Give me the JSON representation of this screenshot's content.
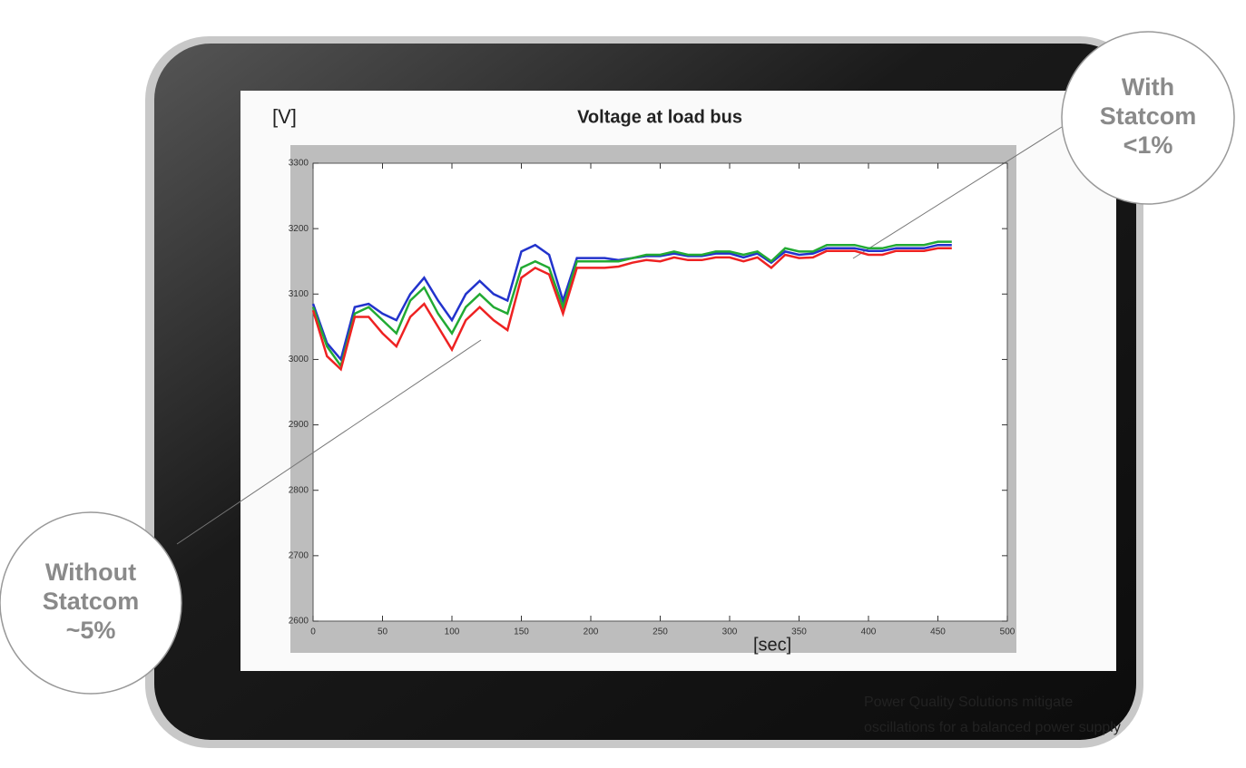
{
  "chart_data": {
    "type": "line",
    "title": "Voltage at load bus",
    "y_label": "[V]",
    "x_label": "[sec]",
    "x": [
      0,
      10,
      20,
      30,
      40,
      50,
      60,
      70,
      80,
      90,
      100,
      110,
      120,
      130,
      140,
      150,
      160,
      170,
      180,
      190,
      200,
      210,
      220,
      230,
      240,
      250,
      260,
      270,
      280,
      290,
      300,
      310,
      320,
      330,
      340,
      350,
      360,
      370,
      380,
      390,
      400,
      410,
      420,
      430,
      440,
      450,
      460
    ],
    "series": [
      {
        "color": "#2233cc",
        "values": [
          3085,
          3025,
          3000,
          3080,
          3085,
          3070,
          3060,
          3100,
          3125,
          3090,
          3060,
          3100,
          3120,
          3100,
          3090,
          3165,
          3175,
          3160,
          3090,
          3155,
          3155,
          3155,
          3152,
          3155,
          3158,
          3158,
          3162,
          3158,
          3158,
          3162,
          3162,
          3156,
          3162,
          3148,
          3165,
          3160,
          3162,
          3170,
          3170,
          3170,
          3166,
          3166,
          3170,
          3170,
          3170,
          3175,
          3175
        ]
      },
      {
        "color": "#22aa33",
        "values": [
          3080,
          3020,
          2990,
          3070,
          3080,
          3060,
          3040,
          3090,
          3110,
          3070,
          3040,
          3080,
          3100,
          3080,
          3070,
          3140,
          3150,
          3140,
          3080,
          3150,
          3150,
          3150,
          3150,
          3155,
          3160,
          3160,
          3165,
          3160,
          3160,
          3165,
          3165,
          3160,
          3165,
          3150,
          3170,
          3165,
          3165,
          3175,
          3175,
          3175,
          3170,
          3170,
          3175,
          3175,
          3175,
          3180,
          3180
        ]
      },
      {
        "color": "#ee2222",
        "values": [
          3075,
          3005,
          2985,
          3065,
          3065,
          3040,
          3020,
          3065,
          3085,
          3050,
          3015,
          3060,
          3080,
          3060,
          3045,
          3125,
          3140,
          3130,
          3070,
          3140,
          3140,
          3140,
          3142,
          3148,
          3152,
          3150,
          3156,
          3152,
          3152,
          3156,
          3156,
          3150,
          3156,
          3140,
          3160,
          3155,
          3156,
          3166,
          3166,
          3166,
          3160,
          3160,
          3166,
          3166,
          3166,
          3170,
          3170
        ]
      }
    ],
    "xlim": [
      0,
      500
    ],
    "xticks": [
      0,
      50,
      100,
      150,
      200,
      250,
      300,
      350,
      400,
      450,
      500
    ],
    "ylim": [
      2600,
      3300
    ],
    "yticks": [
      2600,
      2700,
      2800,
      2900,
      3000,
      3100,
      3200,
      3300
    ],
    "annotations": [
      [
        "With",
        "Statcom",
        "<1%"
      ],
      [
        "Without",
        "Statcom",
        "~5%"
      ]
    ],
    "caption": [
      "Power Quality Solutions mitigate",
      "oscillations for a balanced power supply"
    ]
  }
}
